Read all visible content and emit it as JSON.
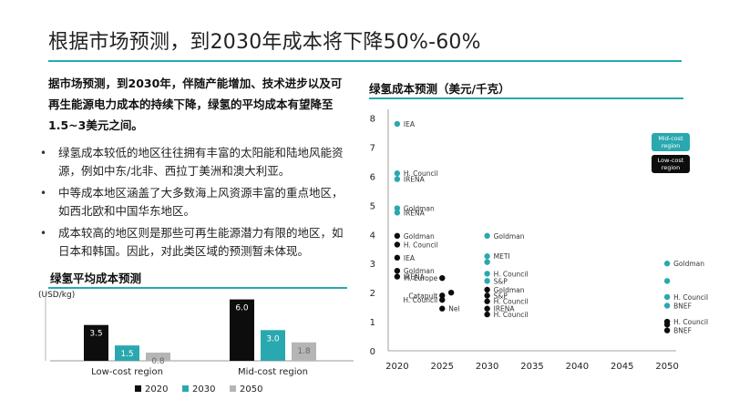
{
  "page": {
    "title": "根据市场预测，到2030年成本将下降50%-60%",
    "intro": "据市场预测，到2030年，伴随产能增加、技术进步以及可再生能源电力成本的持续下降，绿氢的平均成本有望降至1.5~3美元之间。",
    "bullets": [
      "绿氢成本较低的地区往往拥有丰富的太阳能和陆地风能资源，例如中东/北非、西拉丁美洲和澳大利亚。",
      "中等成本地区涵盖了大多数海上风资源丰富的重点地区，如西北欧和中国华东地区。",
      "成本较高的地区则是那些可再生能源潜力有限的地区，如日本和韩国。因此，对此类区域的预测暂未体现。"
    ]
  },
  "colors": {
    "accent": "#2aa8b0",
    "black": "#0d0d0d",
    "teal": "#2aa8b0",
    "gray": "#b5b5b5"
  },
  "chart_data": [
    {
      "type": "bar",
      "title": "绿氢平均成本预测",
      "ylabel": "(USD/kg)",
      "categories": [
        "Low-cost region",
        "Mid-cost region"
      ],
      "series": [
        {
          "name": "2020",
          "color": "#0d0d0d",
          "values": [
            3.5,
            6.0
          ],
          "labels": [
            "3.5",
            "6.0"
          ]
        },
        {
          "name": "2030",
          "color": "#2aa8b0",
          "values": [
            1.5,
            3.0
          ],
          "labels": [
            "1.5",
            "3.0"
          ]
        },
        {
          "name": "2050",
          "color": "#b5b5b5",
          "values": [
            0.8,
            1.8
          ],
          "labels": [
            "0.8",
            "1.8"
          ]
        }
      ],
      "ylim": [
        0,
        6.5
      ],
      "legend_position": "bottom"
    },
    {
      "type": "scatter",
      "title": "绿氢成本预测（美元/千克）",
      "x_ticks": [
        2020,
        2025,
        2030,
        2035,
        2040,
        2045,
        2050
      ],
      "y_ticks": [
        0,
        1,
        2,
        3,
        4,
        5,
        6,
        7,
        8
      ],
      "xlim": [
        2019,
        2051
      ],
      "ylim": [
        0,
        8.3
      ],
      "legend": [
        {
          "label": "Mid-cost region",
          "color": "#2aa8b0"
        },
        {
          "label": "Low-cost region",
          "color": "#0d0d0d"
        }
      ],
      "legend_position": "right",
      "points": [
        {
          "x": 2020,
          "y": 7.8,
          "series": "Mid-cost region",
          "label": "IEA"
        },
        {
          "x": 2020,
          "y": 6.1,
          "series": "Mid-cost region",
          "label": "H. Council"
        },
        {
          "x": 2020,
          "y": 5.9,
          "series": "Mid-cost region",
          "label": "IRENA"
        },
        {
          "x": 2020,
          "y": 4.9,
          "series": "Mid-cost region",
          "label": "Goldman"
        },
        {
          "x": 2020,
          "y": 4.75,
          "series": "Mid-cost region",
          "label": "IRENA"
        },
        {
          "x": 2020,
          "y": 3.95,
          "series": "Low-cost region",
          "label": "Goldman"
        },
        {
          "x": 2020,
          "y": 3.65,
          "series": "Low-cost region",
          "label": "H. Council"
        },
        {
          "x": 2020,
          "y": 3.2,
          "series": "Low-cost region",
          "label": "IEA"
        },
        {
          "x": 2020,
          "y": 2.75,
          "series": "Low-cost region",
          "label": "Goldman"
        },
        {
          "x": 2020,
          "y": 2.55,
          "series": "Low-cost region",
          "label": "IRENA"
        },
        {
          "x": 2025,
          "y": 2.5,
          "series": "Low-cost region",
          "label": "H. Europe"
        },
        {
          "x": 2025,
          "y": 1.9,
          "series": "Low-cost region",
          "label": "Catapult"
        },
        {
          "x": 2025,
          "y": 1.75,
          "series": "Low-cost region",
          "label": "H. Council"
        },
        {
          "x": 2025,
          "y": 1.45,
          "series": "Low-cost region",
          "label": "Nel"
        },
        {
          "x": 2026,
          "y": 2.0,
          "series": "Low-cost region",
          "label": ""
        },
        {
          "x": 2030,
          "y": 3.95,
          "series": "Mid-cost region",
          "label": "Goldman"
        },
        {
          "x": 2030,
          "y": 3.25,
          "series": "Mid-cost region",
          "label": "METI"
        },
        {
          "x": 2030,
          "y": 3.05,
          "series": "Mid-cost region",
          "label": ""
        },
        {
          "x": 2030,
          "y": 2.65,
          "series": "Mid-cost region",
          "label": "H. Council"
        },
        {
          "x": 2030,
          "y": 2.4,
          "series": "Mid-cost region",
          "label": "S&P"
        },
        {
          "x": 2030,
          "y": 2.1,
          "series": "Low-cost region",
          "label": "Goldman"
        },
        {
          "x": 2030,
          "y": 1.9,
          "series": "Low-cost region",
          "label": "S&P"
        },
        {
          "x": 2030,
          "y": 1.7,
          "series": "Low-cost region",
          "label": "H. Council"
        },
        {
          "x": 2030,
          "y": 1.45,
          "series": "Low-cost region",
          "label": "IRENA"
        },
        {
          "x": 2030,
          "y": 1.25,
          "series": "Low-cost region",
          "label": "H. Council"
        },
        {
          "x": 2050,
          "y": 3.0,
          "series": "Mid-cost region",
          "label": "Goldman"
        },
        {
          "x": 2050,
          "y": 2.4,
          "series": "Mid-cost region",
          "label": ""
        },
        {
          "x": 2050,
          "y": 1.85,
          "series": "Mid-cost region",
          "label": "H. Council"
        },
        {
          "x": 2050,
          "y": 1.55,
          "series": "Mid-cost region",
          "label": "BNEF"
        },
        {
          "x": 2050,
          "y": 1.0,
          "series": "Low-cost region",
          "label": "H. Council"
        },
        {
          "x": 2050,
          "y": 0.9,
          "series": "Low-cost region",
          "label": ""
        },
        {
          "x": 2050,
          "y": 0.7,
          "series": "Low-cost region",
          "label": "BNEF"
        }
      ]
    }
  ]
}
